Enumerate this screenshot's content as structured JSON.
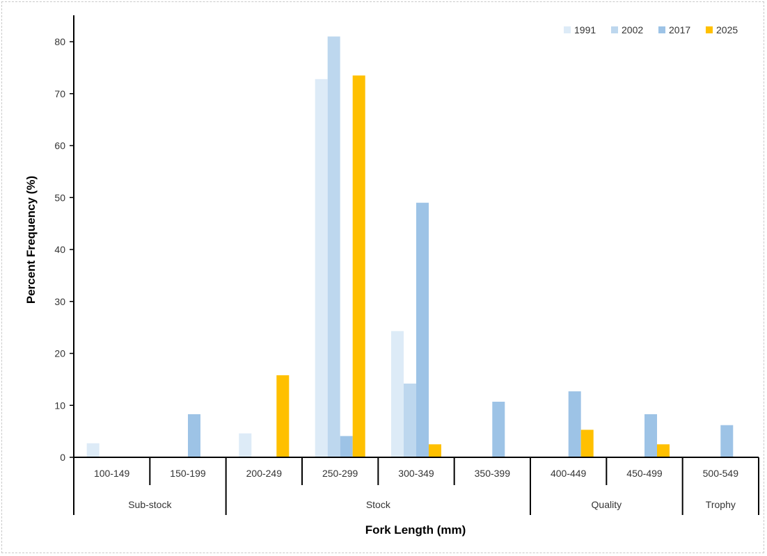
{
  "chart_data": {
    "type": "bar",
    "categories": [
      "100-149",
      "150-199",
      "200-249",
      "250-299",
      "300-349",
      "350-399",
      "400-449",
      "450-499",
      "500-549"
    ],
    "groups": [
      {
        "label": "Sub-stock",
        "from": 0,
        "to": 1
      },
      {
        "label": "Stock",
        "from": 2,
        "to": 5
      },
      {
        "label": "Quality",
        "from": 6,
        "to": 7
      },
      {
        "label": "Trophy",
        "from": 8,
        "to": 8
      }
    ],
    "series": [
      {
        "name": "1991",
        "color": "#ddebf7",
        "values": [
          2.7,
          0,
          4.6,
          72.8,
          24.3,
          0,
          0,
          0,
          0
        ]
      },
      {
        "name": "2002",
        "color": "#bdd7ee",
        "values": [
          0,
          0,
          0,
          81.0,
          14.2,
          0,
          0,
          0,
          0
        ]
      },
      {
        "name": "2017",
        "color": "#9dc3e6",
        "values": [
          0,
          8.3,
          0,
          4.1,
          49.0,
          10.7,
          12.7,
          8.3,
          6.2
        ]
      },
      {
        "name": "2025",
        "color": "#ffc000",
        "values": [
          0,
          0,
          15.8,
          73.5,
          2.5,
          0,
          5.3,
          2.5,
          0
        ]
      }
    ],
    "title": "",
    "xlabel": "Fork Length (mm)",
    "ylabel": "Percent Frequency (%)",
    "ylim": [
      0,
      85
    ],
    "yticks": [
      0,
      10,
      20,
      30,
      40,
      50,
      60,
      70,
      80
    ],
    "legend": "top-right",
    "grid": false
  }
}
